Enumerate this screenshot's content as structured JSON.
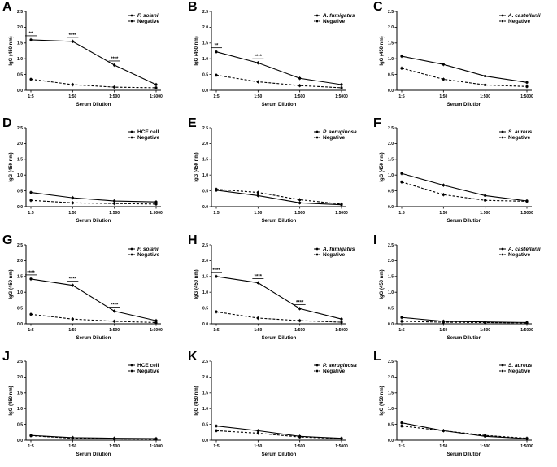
{
  "chart_data": [
    {
      "panel": "A",
      "type": "line",
      "xlabel": "Serum Dilution",
      "ylabel": "IgG (450 nm)",
      "categories": [
        "1:5",
        "1:50",
        "1:500",
        "1:5000"
      ],
      "ylim": [
        0,
        2.5
      ],
      "yticks": [
        "0.0",
        "0.5",
        "1.0",
        "1.5",
        "2.0",
        "2.5"
      ],
      "legend_position": "top-right",
      "series": [
        {
          "name": "F. solani",
          "italic": true,
          "style": "solid",
          "values": [
            1.6,
            1.55,
            0.8,
            0.18
          ]
        },
        {
          "name": "Negative",
          "italic": false,
          "style": "dashed",
          "values": [
            0.35,
            0.18,
            0.1,
            0.08
          ]
        }
      ],
      "significance": [
        {
          "category_index": 0,
          "label": "**"
        },
        {
          "category_index": 1,
          "label": "****"
        },
        {
          "category_index": 2,
          "label": "****"
        }
      ]
    },
    {
      "panel": "B",
      "type": "line",
      "xlabel": "Serum Dilution",
      "ylabel": "IgG (450 nm)",
      "categories": [
        "1:5",
        "1:50",
        "1:500",
        "1:5000"
      ],
      "ylim": [
        0,
        2.5
      ],
      "yticks": [
        "0.0",
        "0.5",
        "1.0",
        "1.5",
        "2.0",
        "2.5"
      ],
      "legend_position": "top-right",
      "series": [
        {
          "name": "A. fumigatus",
          "italic": true,
          "style": "solid",
          "values": [
            1.22,
            0.87,
            0.38,
            0.18
          ]
        },
        {
          "name": "Negative",
          "italic": false,
          "style": "dashed",
          "values": [
            0.48,
            0.27,
            0.15,
            0.08
          ]
        }
      ],
      "significance": [
        {
          "category_index": 0,
          "label": "**"
        },
        {
          "category_index": 1,
          "label": "****"
        }
      ]
    },
    {
      "panel": "C",
      "type": "line",
      "xlabel": "Serum Dilution",
      "ylabel": "IgG (450 nm)",
      "categories": [
        "1:5",
        "1:50",
        "1:500",
        "1:5000"
      ],
      "ylim": [
        0,
        2.5
      ],
      "yticks": [
        "0.0",
        "0.5",
        "1.0",
        "1.5",
        "2.0",
        "2.5"
      ],
      "legend_position": "top-right",
      "series": [
        {
          "name": "A. castellanii",
          "italic": true,
          "style": "solid",
          "values": [
            1.08,
            0.82,
            0.45,
            0.25
          ]
        },
        {
          "name": "Negative",
          "italic": false,
          "style": "dashed",
          "values": [
            0.7,
            0.35,
            0.17,
            0.12
          ]
        }
      ],
      "significance": []
    },
    {
      "panel": "D",
      "type": "line",
      "xlabel": "Serum Dilution",
      "ylabel": "IgG (450 nm)",
      "categories": [
        "1:5",
        "1:50",
        "1:500",
        "1:5000"
      ],
      "ylim": [
        0,
        2.5
      ],
      "yticks": [
        "0.0",
        "0.5",
        "1.0",
        "1.5",
        "2.0",
        "2.5"
      ],
      "legend_position": "top-right",
      "series": [
        {
          "name": "HCE cell",
          "italic": false,
          "style": "solid",
          "values": [
            0.45,
            0.28,
            0.18,
            0.15
          ]
        },
        {
          "name": "Negative",
          "italic": false,
          "style": "dashed",
          "values": [
            0.2,
            0.12,
            0.1,
            0.08
          ]
        }
      ],
      "significance": []
    },
    {
      "panel": "E",
      "type": "line",
      "xlabel": "Serum Dilution",
      "ylabel": "IgG (450 nm)",
      "categories": [
        "1:5",
        "1:50",
        "1:500",
        "1:5000"
      ],
      "ylim": [
        0,
        2.5
      ],
      "yticks": [
        "0.0",
        "0.5",
        "1.0",
        "1.5",
        "2.0",
        "2.5"
      ],
      "legend_position": "top-right",
      "series": [
        {
          "name": "P. aeruginosa",
          "italic": true,
          "style": "solid",
          "values": [
            0.52,
            0.35,
            0.12,
            0.06
          ]
        },
        {
          "name": "Negative",
          "italic": false,
          "style": "dashed",
          "values": [
            0.55,
            0.45,
            0.22,
            0.08
          ]
        }
      ],
      "significance": []
    },
    {
      "panel": "F",
      "type": "line",
      "xlabel": "Serum Dilution",
      "ylabel": "IgG (450 nm)",
      "categories": [
        "1:5",
        "1:50",
        "1:500",
        "1:5000"
      ],
      "ylim": [
        0,
        2.5
      ],
      "yticks": [
        "0.0",
        "0.5",
        "1.0",
        "1.5",
        "2.0",
        "2.5"
      ],
      "legend_position": "top-right",
      "series": [
        {
          "name": "S. aureus",
          "italic": true,
          "style": "solid",
          "values": [
            1.05,
            0.68,
            0.35,
            0.18
          ]
        },
        {
          "name": "Negative",
          "italic": false,
          "style": "dashed",
          "values": [
            0.78,
            0.38,
            0.2,
            0.17
          ]
        }
      ],
      "significance": []
    },
    {
      "panel": "G",
      "type": "line",
      "xlabel": "Serum Dilution",
      "ylabel": "IgG (450 nm)",
      "categories": [
        "1:5",
        "1:50",
        "1:500",
        "1:5000"
      ],
      "ylim": [
        0,
        2.5
      ],
      "yticks": [
        "0.0",
        "0.5",
        "1.0",
        "1.5",
        "2.0",
        "2.5"
      ],
      "legend_position": "top-right",
      "series": [
        {
          "name": "F. solani",
          "italic": true,
          "style": "solid",
          "values": [
            1.42,
            1.22,
            0.4,
            0.1
          ]
        },
        {
          "name": "Negative",
          "italic": false,
          "style": "dashed",
          "values": [
            0.3,
            0.15,
            0.08,
            0.04
          ]
        }
      ],
      "significance": [
        {
          "category_index": 0,
          "label": "****"
        },
        {
          "category_index": 1,
          "label": "****"
        },
        {
          "category_index": 2,
          "label": "****"
        }
      ]
    },
    {
      "panel": "H",
      "type": "line",
      "xlabel": "Serum Dilution",
      "ylabel": "IgG (450 nm)",
      "categories": [
        "1:5",
        "1:50",
        "1:500",
        "1:5000"
      ],
      "ylim": [
        0,
        2.5
      ],
      "yticks": [
        "0.0",
        "0.5",
        "1.0",
        "1.5",
        "2.0",
        "2.5"
      ],
      "legend_position": "top-right",
      "series": [
        {
          "name": "A. fumigatus",
          "italic": true,
          "style": "solid",
          "values": [
            1.5,
            1.3,
            0.48,
            0.15
          ]
        },
        {
          "name": "Negative",
          "italic": false,
          "style": "dashed",
          "values": [
            0.38,
            0.18,
            0.1,
            0.05
          ]
        }
      ],
      "significance": [
        {
          "category_index": 0,
          "label": "****"
        },
        {
          "category_index": 1,
          "label": "****"
        },
        {
          "category_index": 2,
          "label": "****"
        }
      ]
    },
    {
      "panel": "I",
      "type": "line",
      "xlabel": "Serum Dilution",
      "ylabel": "IgG (450 nm)",
      "categories": [
        "1:5",
        "1:50",
        "1:500",
        "1:5000"
      ],
      "ylim": [
        0,
        2.5
      ],
      "yticks": [
        "0.0",
        "0.5",
        "1.0",
        "1.5",
        "2.0",
        "2.5"
      ],
      "legend_position": "top-right",
      "series": [
        {
          "name": "A. castellanii",
          "italic": true,
          "style": "solid",
          "values": [
            0.2,
            0.08,
            0.06,
            0.04
          ]
        },
        {
          "name": "Negative",
          "italic": false,
          "style": "dashed",
          "values": [
            0.08,
            0.05,
            0.04,
            0.03
          ]
        }
      ],
      "significance": []
    },
    {
      "panel": "J",
      "type": "line",
      "xlabel": "Serum Dilution",
      "ylabel": "IgG (450 nm)",
      "categories": [
        "1:5",
        "1:50",
        "1:500",
        "1:5000"
      ],
      "ylim": [
        0,
        2.5
      ],
      "yticks": [
        "0.0",
        "0.5",
        "1.0",
        "1.5",
        "2.0",
        "2.5"
      ],
      "legend_position": "top-right",
      "series": [
        {
          "name": "HCE cell",
          "italic": false,
          "style": "solid",
          "values": [
            0.15,
            0.08,
            0.06,
            0.05
          ]
        },
        {
          "name": "Negative",
          "italic": false,
          "style": "dashed",
          "values": [
            0.14,
            0.06,
            0.04,
            0.03
          ]
        }
      ],
      "significance": []
    },
    {
      "panel": "K",
      "type": "line",
      "xlabel": "Serum Dilution",
      "ylabel": "IgG (450 nm)",
      "categories": [
        "1:5",
        "1:50",
        "1:500",
        "1:5000"
      ],
      "ylim": [
        0,
        2.5
      ],
      "yticks": [
        "0.0",
        "0.5",
        "1.0",
        "1.5",
        "2.0",
        "2.5"
      ],
      "legend_position": "top-right",
      "series": [
        {
          "name": "P. aeruginosa",
          "italic": true,
          "style": "solid",
          "values": [
            0.45,
            0.3,
            0.12,
            0.06
          ]
        },
        {
          "name": "Negative",
          "italic": false,
          "style": "dashed",
          "values": [
            0.3,
            0.22,
            0.1,
            0.05
          ]
        }
      ],
      "significance": []
    },
    {
      "panel": "L",
      "type": "line",
      "xlabel": "Serum Dilution",
      "ylabel": "IgG (450 nm)",
      "categories": [
        "1:5",
        "1:50",
        "1:500",
        "1:5000"
      ],
      "ylim": [
        0,
        2.5
      ],
      "yticks": [
        "0.0",
        "0.5",
        "1.0",
        "1.5",
        "2.0",
        "2.5"
      ],
      "legend_position": "top-right",
      "series": [
        {
          "name": "S. aureus",
          "italic": true,
          "style": "solid",
          "values": [
            0.55,
            0.3,
            0.12,
            0.05
          ]
        },
        {
          "name": "Negative",
          "italic": false,
          "style": "dashed",
          "values": [
            0.45,
            0.3,
            0.15,
            0.06
          ]
        }
      ],
      "significance": []
    }
  ]
}
